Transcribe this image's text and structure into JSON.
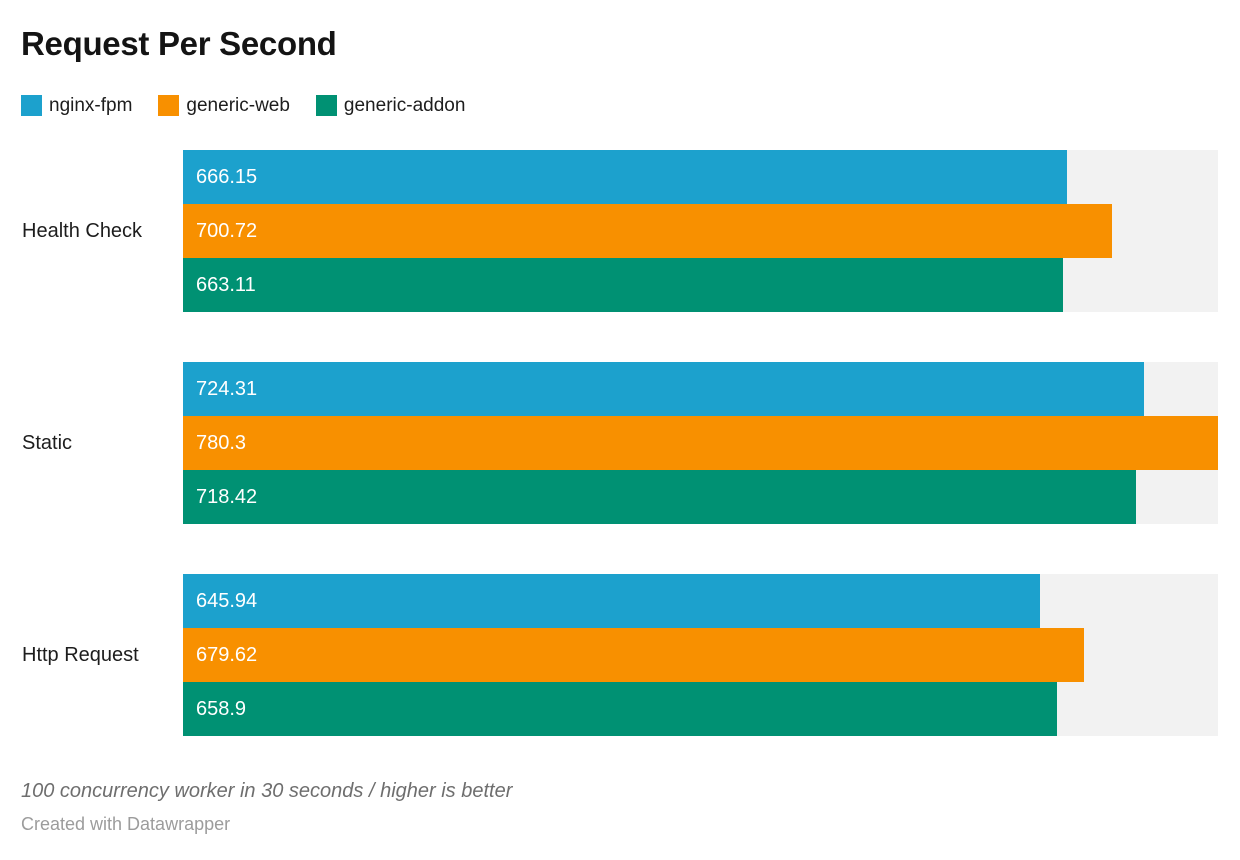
{
  "title": "Request Per Second",
  "legend": [
    {
      "label": "nginx-fpm",
      "color": "#1CA1CD"
    },
    {
      "label": "generic-web",
      "color": "#F89000"
    },
    {
      "label": "generic-addon",
      "color": "#009173"
    }
  ],
  "chart_data": {
    "type": "bar",
    "orientation": "horizontal",
    "categories": [
      "Health Check",
      "Static",
      "Http Request"
    ],
    "series": [
      {
        "name": "nginx-fpm",
        "color": "#1CA1CD",
        "values": [
          666.15,
          724.31,
          645.94
        ]
      },
      {
        "name": "generic-web",
        "color": "#F89000",
        "values": [
          700.72,
          780.3,
          679.62
        ]
      },
      {
        "name": "generic-addon",
        "color": "#009173",
        "values": [
          663.11,
          718.42,
          658.9
        ]
      }
    ],
    "xlim": [
      0,
      780.3
    ],
    "value_labels_inside": true,
    "track_color": "#f2f2f2",
    "grid": false,
    "legend_position": "top"
  },
  "footer": {
    "note": "100 concurrency worker in 30 seconds / higher is better",
    "byline": "Created with Datawrapper"
  }
}
